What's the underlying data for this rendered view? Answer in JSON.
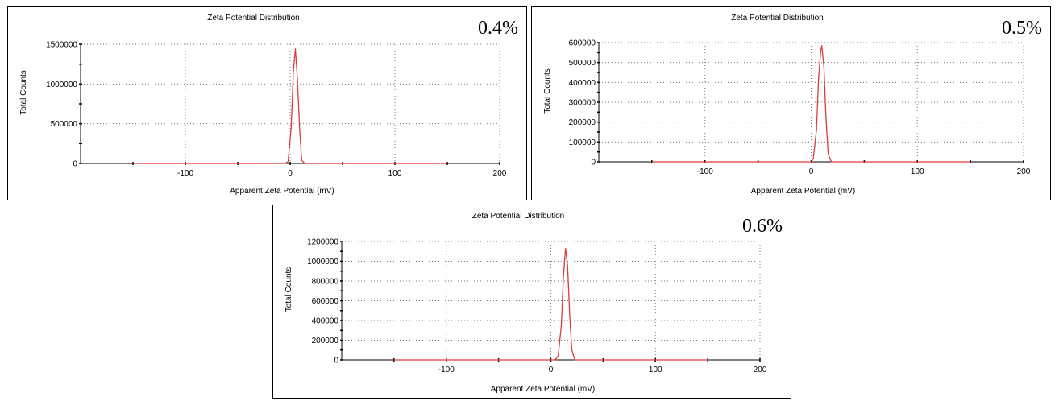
{
  "chart_data": [
    {
      "type": "line",
      "title": "Zeta Potential Distribution",
      "label": "0.4%",
      "xlabel": "Apparent Zeta Potential (mV)",
      "ylabel": "Total Counts",
      "xlim": [
        -200,
        200
      ],
      "ylim": [
        0,
        1500000
      ],
      "x_ticks": [
        -100,
        0,
        100,
        200
      ],
      "x_tick_labels": [
        "-100",
        "0",
        "100",
        "200"
      ],
      "y_ticks": [
        0,
        500000,
        1000000,
        1500000
      ],
      "y_tick_labels": [
        "0",
        "500000",
        "1000000",
        "1500000"
      ],
      "grid": true,
      "line_color": "#e03a3a",
      "series": [
        {
          "x": [
            -150,
            -5,
            -2,
            1,
            3,
            5,
            7,
            9,
            11,
            14,
            150
          ],
          "y": [
            0,
            0,
            20000,
            450000,
            1150000,
            1440000,
            1050000,
            450000,
            40000,
            0,
            0
          ]
        }
      ]
    },
    {
      "type": "line",
      "title": "Zeta Potential Distribution",
      "label": "0.5%",
      "xlabel": "Apparent Zeta Potential (mV)",
      "ylabel": "Total Counts",
      "xlim": [
        -200,
        200
      ],
      "ylim": [
        0,
        600000
      ],
      "x_ticks": [
        -100,
        0,
        100,
        200
      ],
      "x_tick_labels": [
        "-100",
        "0",
        "100",
        "200"
      ],
      "y_ticks": [
        0,
        100000,
        200000,
        300000,
        400000,
        500000,
        600000
      ],
      "y_tick_labels": [
        "0",
        "100000",
        "200000",
        "300000",
        "400000",
        "500000",
        "600000"
      ],
      "grid": true,
      "line_color": "#e03a3a",
      "series": [
        {
          "x": [
            -150,
            0,
            2,
            5,
            7,
            9,
            10,
            12,
            14,
            16,
            19,
            150
          ],
          "y": [
            0,
            0,
            15000,
            160000,
            420000,
            560000,
            585000,
            480000,
            220000,
            40000,
            0,
            0
          ]
        }
      ]
    },
    {
      "type": "line",
      "title": "Zeta Potential Distribution",
      "label": "0.6%",
      "xlabel": "Apparent Zeta Potential (mV)",
      "ylabel": "Total Counts",
      "xlim": [
        -200,
        200
      ],
      "ylim": [
        0,
        1200000
      ],
      "x_ticks": [
        -100,
        0,
        100,
        200
      ],
      "x_tick_labels": [
        "-100",
        "0",
        "100",
        "200"
      ],
      "y_ticks": [
        0,
        200000,
        400000,
        600000,
        800000,
        1000000,
        1200000
      ],
      "y_tick_labels": [
        "0",
        "200000",
        "400000",
        "600000",
        "800000",
        "1000000",
        "1200000"
      ],
      "grid": true,
      "line_color": "#e03a3a",
      "series": [
        {
          "x": [
            -150,
            4,
            7,
            10,
            12,
            14,
            16,
            18,
            20,
            23,
            150
          ],
          "y": [
            0,
            0,
            40000,
            350000,
            850000,
            1130000,
            950000,
            450000,
            100000,
            0,
            0
          ]
        }
      ]
    }
  ]
}
